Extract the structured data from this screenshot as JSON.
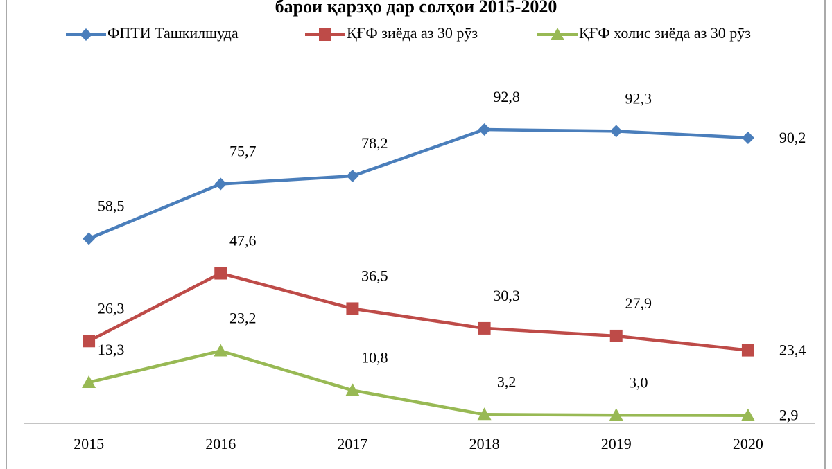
{
  "chart_data": {
    "type": "line",
    "title": "барои қарзҳо дар солҳои 2015-2020",
    "categories": [
      "2015",
      "2016",
      "2017",
      "2018",
      "2019",
      "2020"
    ],
    "ylim": [
      0,
      100
    ],
    "series": [
      {
        "name": "ФПТИ Ташкилшуда",
        "color": "#4a7ebb",
        "marker": "diamond",
        "values": [
          58.5,
          75.7,
          78.2,
          92.8,
          92.3,
          90.2
        ],
        "value_labels": [
          "58,5",
          "75,7",
          "78,2",
          "92,8",
          "92,3",
          "90,2"
        ]
      },
      {
        "name": "ҚҒФ зиёда аз 30 рӯз",
        "color": "#be4b48",
        "marker": "square",
        "values": [
          26.3,
          47.6,
          36.5,
          30.3,
          27.9,
          23.4
        ],
        "value_labels": [
          "26,3",
          "47,6",
          "36,5",
          "30,3",
          "27,9",
          "23,4"
        ]
      },
      {
        "name": "ҚҒФ холис зиёда аз 30 рӯз",
        "color": "#98b954",
        "marker": "triangle",
        "values": [
          13.3,
          23.2,
          10.8,
          3.2,
          3.0,
          2.9
        ],
        "value_labels": [
          "13,3",
          "23,2",
          "10,8",
          "3,2",
          "3,0",
          "2,9"
        ]
      }
    ]
  }
}
